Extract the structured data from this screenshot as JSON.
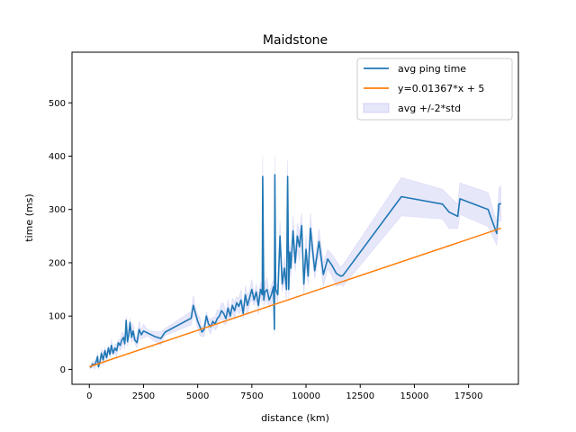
{
  "chart_data": {
    "type": "line",
    "title": "Maidstone",
    "xlabel": "distance (km)",
    "ylabel": "time (ms)",
    "xlim": [
      -800,
      19800
    ],
    "ylim": [
      -28,
      595
    ],
    "xticks": [
      0,
      2500,
      5000,
      7500,
      10000,
      12500,
      15000,
      17500
    ],
    "yticks": [
      0,
      100,
      200,
      300,
      400,
      500
    ],
    "grid": false,
    "legend_position": "top-right",
    "series": [
      {
        "name": "avg ping time",
        "type": "line",
        "color": "#1f77b4",
        "x": [
          50,
          150,
          250,
          320,
          380,
          420,
          480,
          560,
          640,
          720,
          800,
          880,
          950,
          1020,
          1100,
          1180,
          1260,
          1340,
          1420,
          1500,
          1580,
          1640,
          1700,
          1760,
          1820,
          1880,
          1950,
          2020,
          2100,
          2200,
          2300,
          2400,
          2500,
          2700,
          3000,
          3300,
          3500,
          4700,
          4800,
          4900,
          5000,
          5100,
          5200,
          5300,
          5400,
          5500,
          5600,
          5700,
          5800,
          5900,
          6000,
          6100,
          6200,
          6300,
          6400,
          6500,
          6600,
          6700,
          6800,
          6900,
          7000,
          7100,
          7200,
          7300,
          7400,
          7500,
          7600,
          7700,
          7800,
          7900,
          7980,
          8000,
          8050,
          8100,
          8200,
          8300,
          8400,
          8500,
          8540,
          8560,
          8600,
          8700,
          8800,
          8900,
          9000,
          9100,
          9150,
          9200,
          9250,
          9300,
          9400,
          9500,
          9600,
          9700,
          9800,
          9900,
          10000,
          10100,
          10200,
          10400,
          10600,
          10800,
          11000,
          11200,
          11400,
          11600,
          11700,
          14400,
          16300,
          16600,
          17000,
          17100,
          18400,
          18800,
          18900,
          19000
        ],
        "y": [
          3,
          10,
          8,
          15,
          24,
          5,
          12,
          30,
          18,
          35,
          22,
          40,
          28,
          45,
          30,
          40,
          35,
          50,
          45,
          55,
          60,
          48,
          92,
          52,
          65,
          88,
          60,
          72,
          55,
          50,
          75,
          65,
          72,
          68,
          62,
          58,
          70,
          96,
          120,
          105,
          90,
          80,
          70,
          75,
          100,
          85,
          80,
          90,
          85,
          95,
          100,
          110,
          105,
          95,
          115,
          100,
          120,
          110,
          125,
          118,
          130,
          105,
          140,
          120,
          135,
          150,
          130,
          145,
          120,
          150,
          140,
          362,
          130,
          145,
          150,
          130,
          140,
          155,
          75,
          365,
          150,
          140,
          250,
          160,
          190,
          150,
          362,
          150,
          220,
          190,
          260,
          200,
          250,
          230,
          270,
          160,
          225,
          175,
          265,
          185,
          240,
          178,
          207,
          195,
          180,
          175,
          176,
          324,
          310,
          295,
          287,
          320,
          300,
          255,
          310,
          311
        ],
        "band": {
          "name": "avg +/-2*std",
          "color": "#b0b0f0",
          "opacity": 0.3
        }
      },
      {
        "name": "y=0.01367*x + 5",
        "type": "line",
        "color": "#ff7f0e",
        "x": [
          0,
          19000
        ],
        "y": [
          5,
          264.73
        ]
      }
    ],
    "legend": [
      {
        "label": "avg ping time",
        "kind": "line",
        "color": "#1f77b4"
      },
      {
        "label": "y=0.01367*x + 5",
        "kind": "line",
        "color": "#ff7f0e"
      },
      {
        "label": "avg +/-2*std",
        "kind": "patch",
        "color": "#b0b0f0"
      }
    ]
  }
}
